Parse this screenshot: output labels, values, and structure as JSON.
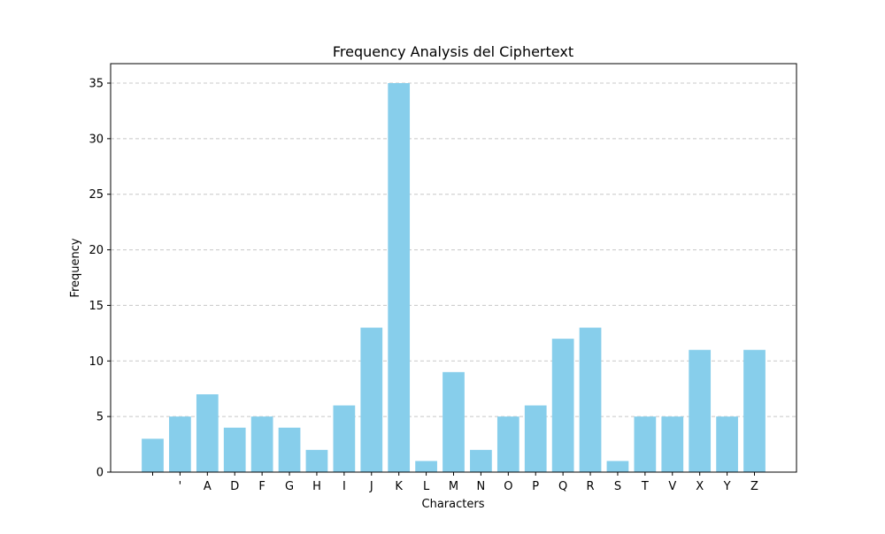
{
  "chart_data": {
    "type": "bar",
    "title": "Frequency Analysis del Ciphertext",
    "xlabel": "Characters",
    "ylabel": "Frequency",
    "categories": [
      " ",
      "'",
      "A",
      "D",
      "F",
      "G",
      "H",
      "I",
      "J",
      "K",
      "L",
      "M",
      "N",
      "O",
      "P",
      "Q",
      "R",
      "S",
      "T",
      "V",
      "X",
      "Y",
      "Z"
    ],
    "values": [
      3,
      5,
      7,
      4,
      5,
      4,
      2,
      6,
      13,
      35,
      1,
      9,
      2,
      5,
      6,
      12,
      13,
      1,
      5,
      5,
      11,
      5,
      11
    ],
    "ylim": [
      0,
      36.75
    ],
    "yticks": [
      0,
      5,
      10,
      15,
      20,
      25,
      30,
      35
    ],
    "grid": "y-dashed",
    "bar_color": "#87CEEB",
    "grid_color": "#c8c8c8"
  }
}
